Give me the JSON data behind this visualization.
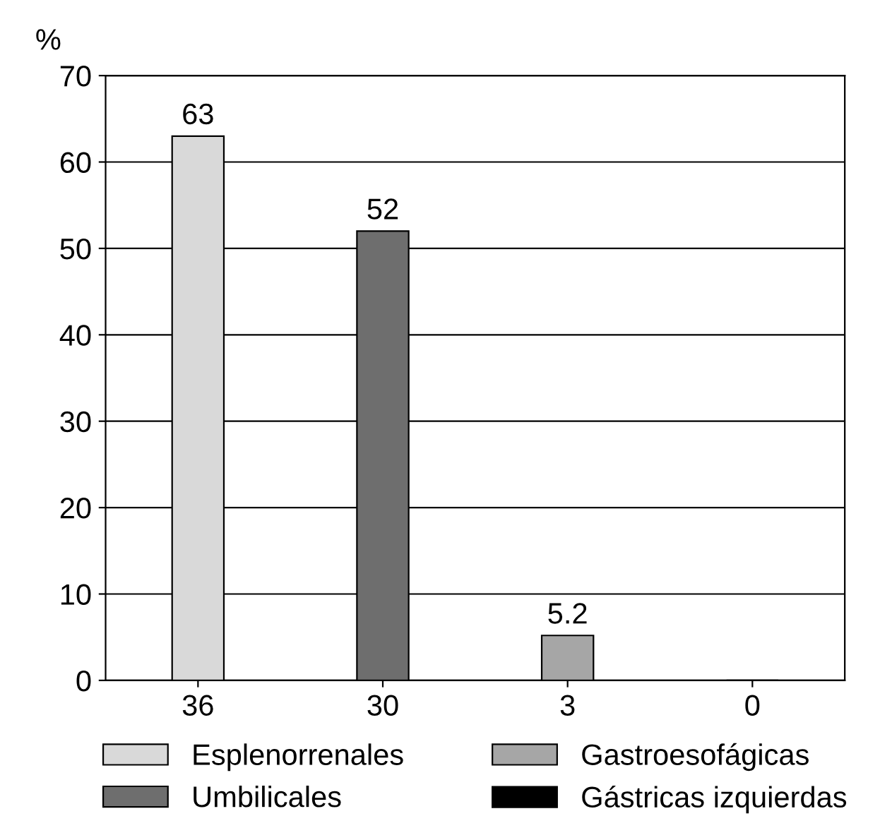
{
  "chart_data": {
    "type": "bar",
    "ylabel": "%",
    "categories": [
      "36",
      "30",
      "3",
      "0"
    ],
    "series": [
      {
        "name": "Esplenorrenales",
        "color": "#d9d9d9",
        "values": [
          63,
          null,
          null,
          null
        ],
        "value_labels": [
          "63",
          null,
          null,
          null
        ]
      },
      {
        "name": "Umbilicales",
        "color": "#6e6e6e",
        "values": [
          null,
          52,
          null,
          null
        ],
        "value_labels": [
          null,
          "52",
          null,
          null
        ]
      },
      {
        "name": "Gastroesofágicas",
        "color": "#a6a6a6",
        "values": [
          null,
          null,
          5.2,
          null
        ],
        "value_labels": [
          null,
          null,
          "5.2",
          null
        ]
      },
      {
        "name": "Gástricas izquierdas",
        "color": "#000000",
        "values": [
          null,
          null,
          null,
          0
        ],
        "value_labels": [
          null,
          null,
          null,
          null
        ]
      }
    ],
    "ylim": [
      0,
      70
    ],
    "yticks": [
      0,
      10,
      20,
      30,
      40,
      50,
      60,
      70
    ],
    "grid": "y",
    "legend": "bottom"
  }
}
